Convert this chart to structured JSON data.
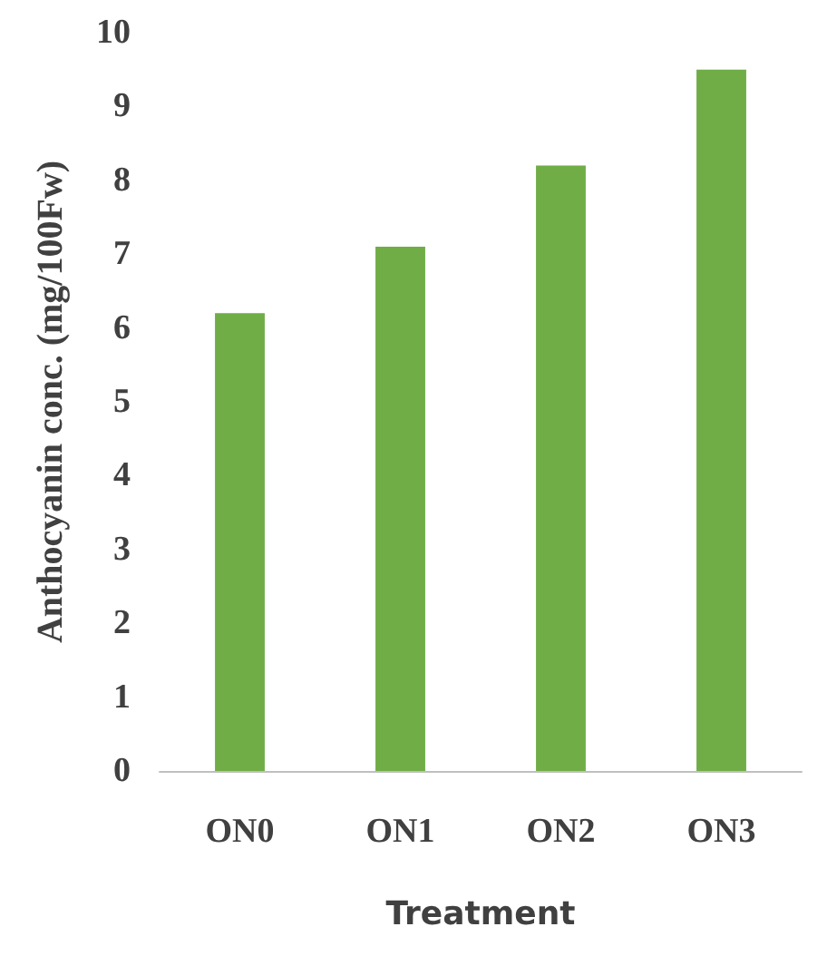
{
  "chart_data": {
    "type": "bar",
    "xlabel": "Treatment",
    "ylabel": "Anthocyanin conc. (mg/100Fw)",
    "categories": [
      "ON0",
      "ON1",
      "ON2",
      "ON3"
    ],
    "values": [
      6.2,
      7.1,
      8.2,
      9.5
    ],
    "color": "#70ad47",
    "ylim": [
      0,
      10
    ],
    "yticks": [
      0,
      1,
      2,
      3,
      4,
      5,
      6,
      7,
      8,
      9,
      10
    ],
    "grid": false
  }
}
